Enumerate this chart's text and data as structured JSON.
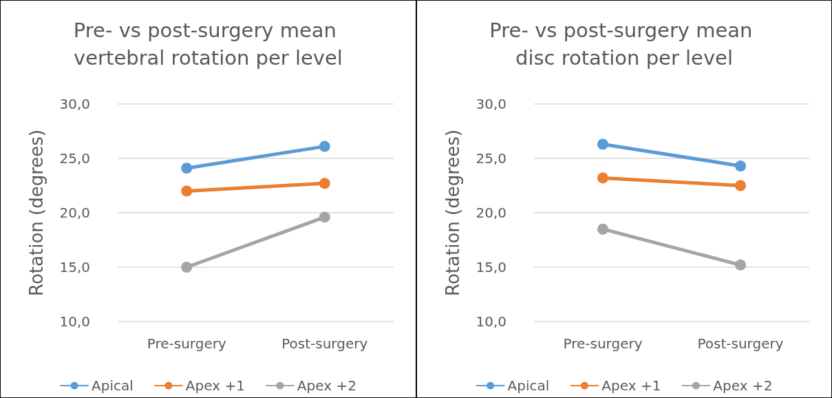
{
  "chart_data": [
    {
      "type": "line",
      "title": "Pre- vs post-surgery mean vertebral rotation per level",
      "ylabel": "Rotation (degrees)",
      "categories": [
        "Pre-surgery",
        "Post-surgery"
      ],
      "series": [
        {
          "name": "Apical",
          "color": "#5b9bd5",
          "values": [
            24.1,
            26.1
          ]
        },
        {
          "name": "Apex +1",
          "color": "#ed7d31",
          "values": [
            22.0,
            22.7
          ]
        },
        {
          "name": "Apex +2",
          "color": "#a5a5a5",
          "values": [
            15.0,
            19.6
          ]
        }
      ],
      "ylim": [
        10,
        30
      ],
      "yticks": [
        {
          "value": 10,
          "label": "10,0"
        },
        {
          "value": 15,
          "label": "15,0"
        },
        {
          "value": 20,
          "label": "20,0"
        },
        {
          "value": 25,
          "label": "25,0"
        },
        {
          "value": 30,
          "label": "30,0"
        }
      ],
      "grid": "y",
      "legend": "bottom",
      "marker": "circle",
      "line_style": "solid"
    },
    {
      "type": "line",
      "title": "Pre- vs post-surgery mean disc rotation per level",
      "ylabel": "Rotation (degrees)",
      "categories": [
        "Pre-surgery",
        "Post-surgery"
      ],
      "series": [
        {
          "name": "Apical",
          "color": "#5b9bd5",
          "values": [
            26.3,
            24.3
          ]
        },
        {
          "name": "Apex +1",
          "color": "#ed7d31",
          "values": [
            23.2,
            22.5
          ]
        },
        {
          "name": "Apex +2",
          "color": "#a5a5a5",
          "values": [
            18.5,
            15.2
          ]
        }
      ],
      "ylim": [
        10,
        30
      ],
      "yticks": [
        {
          "value": 10,
          "label": "10,0"
        },
        {
          "value": 15,
          "label": "15,0"
        },
        {
          "value": 20,
          "label": "20,0"
        },
        {
          "value": 25,
          "label": "25,0"
        },
        {
          "value": 30,
          "label": "30,0"
        }
      ],
      "grid": "y",
      "legend": "bottom",
      "marker": "circle",
      "line_style": "solid"
    }
  ]
}
